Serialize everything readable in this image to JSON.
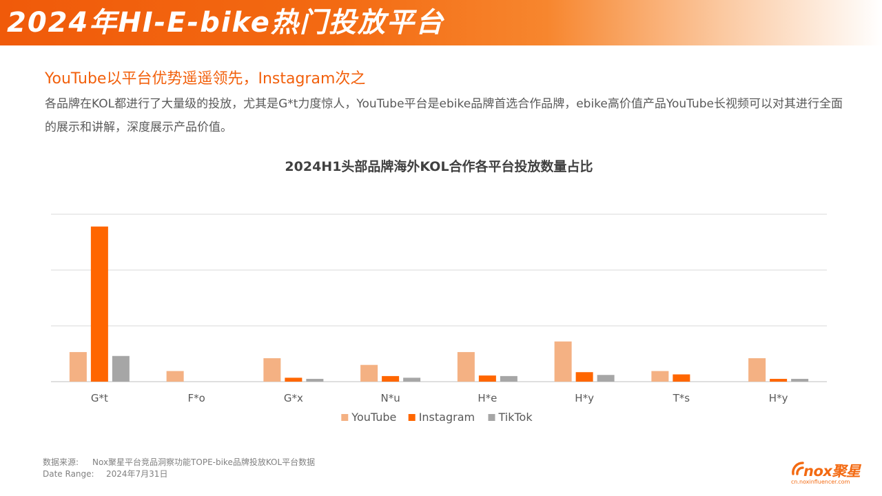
{
  "header": {
    "title": "2024年HI-E-bike热门投放平台"
  },
  "headline": "YouTube以平台优势遥遥领先，Instagram次之",
  "description": "各品牌在KOL都进行了大量级的投放，尤其是G*t力度惊人，YouTube平台是ebike品牌首选合作品牌，ebike高价值产品YouTube长视频可以对其进行全面的展示和讲解，深度展示产品价值。",
  "colors": {
    "header_gradient_start": "#f05a0a",
    "accent": "#f2600c",
    "youtube": "#f4b183",
    "instagram": "#ff6600",
    "tiktok": "#a6a6a6"
  },
  "chart_data": {
    "type": "bar",
    "title": "2024H1头部品牌海外KOL合作各平台投放数量占比",
    "categories": [
      "G*t",
      "F*o",
      "G*x",
      "N*u",
      "H*e",
      "H*y",
      "T*s",
      "H*y"
    ],
    "series": [
      {
        "name": "YouTube",
        "values": [
          53,
          19,
          42,
          30,
          53,
          72,
          19,
          42
        ]
      },
      {
        "name": "Instagram",
        "values": [
          278,
          0,
          7,
          10,
          11,
          17,
          13,
          5
        ]
      },
      {
        "name": "TikTok",
        "values": [
          46,
          0,
          5,
          7,
          10,
          12,
          0,
          5
        ]
      }
    ],
    "ylim": [
      0,
      300
    ],
    "gridlines": [
      0,
      100,
      200,
      300
    ],
    "y_tick_labels_shown": false,
    "xlabel": "",
    "ylabel": "",
    "legend": "bottom",
    "grid": true
  },
  "footer": {
    "source_label": "数据来源:",
    "source_value": "Nox聚星平台竞品洞察功能TOPE-bike品牌投放KOL平台数据",
    "range_label": "Date Range:",
    "range_value": "2024年7月31日"
  },
  "logo": {
    "text": "nox聚星",
    "url": "cn.noxinfluencer.com"
  }
}
